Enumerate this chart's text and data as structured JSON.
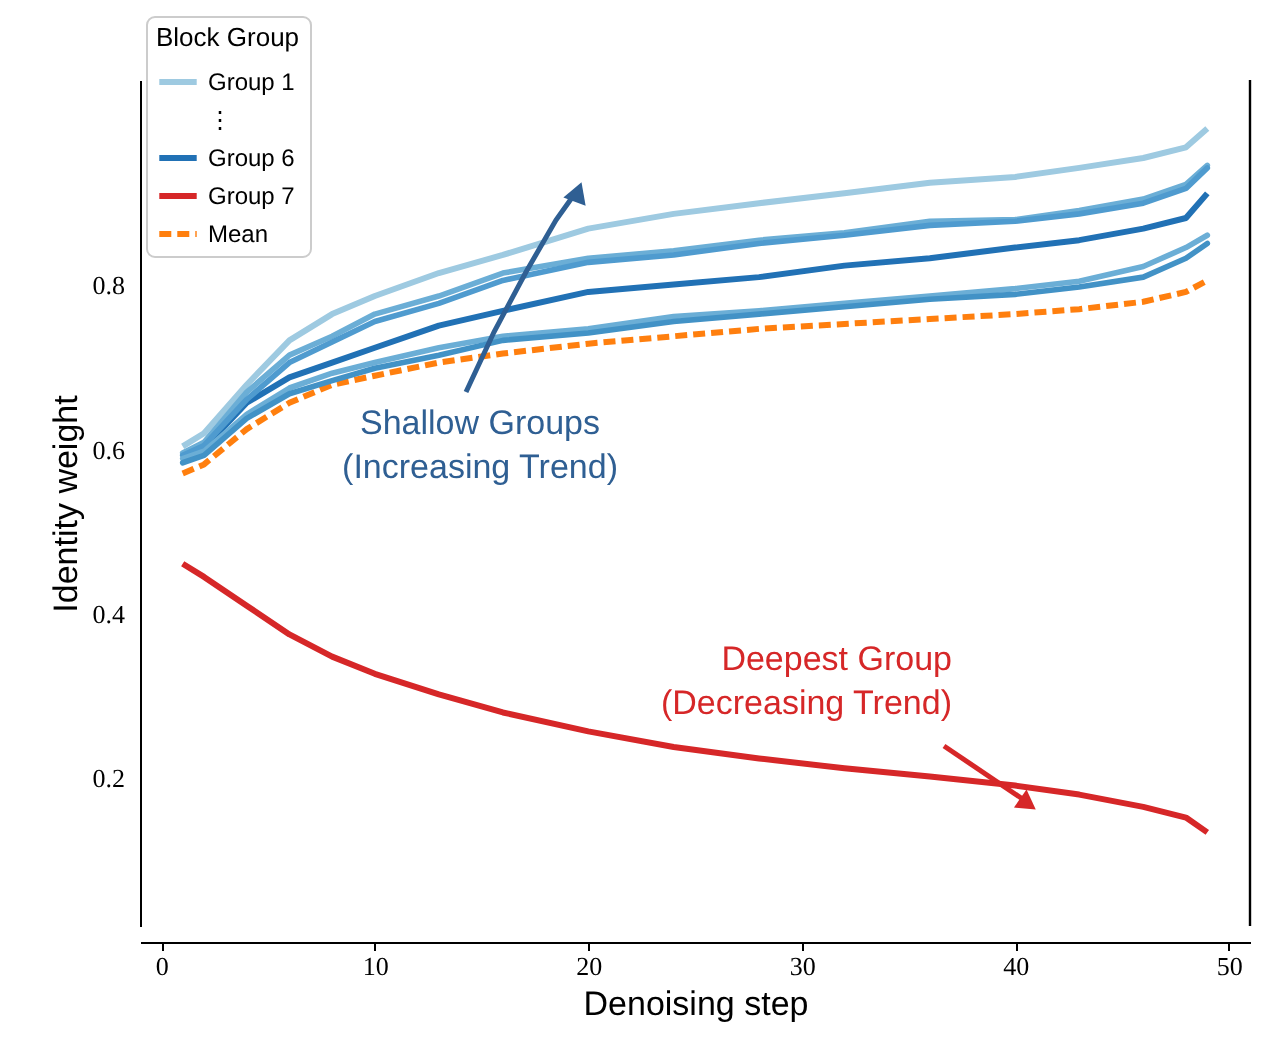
{
  "chart_data": {
    "type": "line",
    "xlabel": "Denoising step",
    "ylabel": "Identity weight",
    "legend_title": "Block Group",
    "x": [
      1,
      2,
      4,
      6,
      8,
      10,
      13,
      16,
      20,
      24,
      28,
      32,
      36,
      40,
      43,
      46,
      48,
      49
    ],
    "series": [
      {
        "name": "Group 1",
        "color": "#9ecae1",
        "values": [
          0.604,
          0.62,
          0.679,
          0.733,
          0.765,
          0.787,
          0.815,
          0.837,
          0.869,
          0.887,
          0.9,
          0.912,
          0.925,
          0.932,
          0.943,
          0.955,
          0.968,
          0.991
        ]
      },
      {
        "color": "#6baed6",
        "values": [
          0.596,
          0.609,
          0.67,
          0.715,
          0.738,
          0.765,
          0.787,
          0.815,
          0.833,
          0.842,
          0.855,
          0.864,
          0.878,
          0.88,
          0.891,
          0.905,
          0.923,
          0.946
        ]
      },
      {
        "color": "#4f9bcf",
        "values": [
          0.593,
          0.605,
          0.661,
          0.706,
          0.731,
          0.756,
          0.778,
          0.806,
          0.828,
          0.837,
          0.851,
          0.861,
          0.873,
          0.878,
          0.887,
          0.9,
          0.918,
          0.943
        ]
      },
      {
        "color": "#6baed6",
        "values": [
          0.589,
          0.598,
          0.643,
          0.675,
          0.693,
          0.706,
          0.724,
          0.738,
          0.747,
          0.762,
          0.769,
          0.778,
          0.787,
          0.796,
          0.805,
          0.823,
          0.846,
          0.861
        ]
      },
      {
        "color": "#4292c6",
        "values": [
          0.584,
          0.593,
          0.638,
          0.668,
          0.684,
          0.699,
          0.715,
          0.733,
          0.742,
          0.756,
          0.765,
          0.774,
          0.783,
          0.789,
          0.798,
          0.81,
          0.833,
          0.851
        ]
      },
      {
        "name": "Group 6",
        "color": "#2171b5",
        "values": [
          0.589,
          0.602,
          0.657,
          0.688,
          0.706,
          0.724,
          0.751,
          0.769,
          0.792,
          0.801,
          0.81,
          0.824,
          0.833,
          0.846,
          0.855,
          0.869,
          0.882,
          0.912
        ]
      },
      {
        "name": "Group 7",
        "color": "#d62728",
        "values": [
          0.461,
          0.445,
          0.41,
          0.375,
          0.348,
          0.327,
          0.302,
          0.28,
          0.257,
          0.238,
          0.224,
          0.212,
          0.202,
          0.191,
          0.18,
          0.165,
          0.152,
          0.134
        ]
      },
      {
        "name": "Mean",
        "color": "#ff7f0e",
        "line_style": "dashed",
        "values": [
          0.571,
          0.582,
          0.625,
          0.657,
          0.679,
          0.69,
          0.706,
          0.717,
          0.729,
          0.738,
          0.747,
          0.753,
          0.759,
          0.765,
          0.771,
          0.78,
          0.792,
          0.806
        ]
      }
    ],
    "xlim": [
      -1,
      51
    ],
    "xticks": [
      0,
      10,
      20,
      30,
      40,
      50
    ],
    "ylim": [
      0.02,
      1.05
    ],
    "yticks": [
      0.2,
      0.4,
      0.6,
      0.8
    ],
    "grid": false,
    "legend": "top left",
    "marker": "none",
    "line_style": "solid",
    "annotations": [
      "⋮",
      "Shallow Groups\n(Increasing Trend)",
      "Deepest Group\n(Decreasing Trend)"
    ]
  }
}
